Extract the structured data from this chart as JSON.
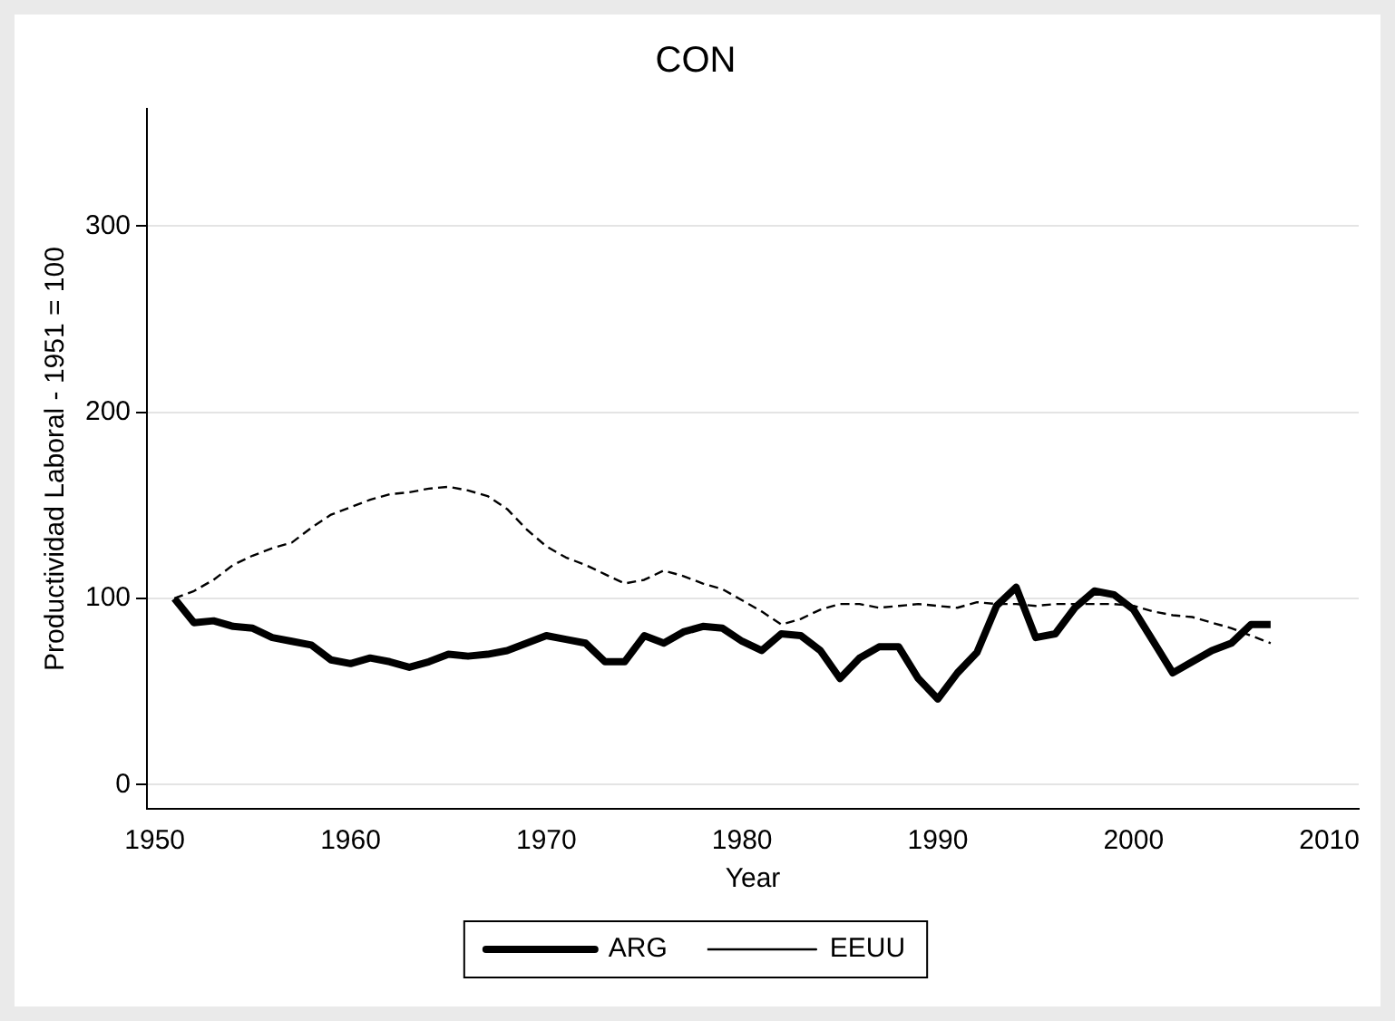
{
  "chart_data": {
    "type": "line",
    "title": "CON",
    "xlabel": "Year",
    "ylabel": "Productividad Laboral - 1951 = 100",
    "x": [
      1951,
      1952,
      1953,
      1954,
      1955,
      1956,
      1957,
      1958,
      1959,
      1960,
      1961,
      1962,
      1963,
      1964,
      1965,
      1966,
      1967,
      1968,
      1969,
      1970,
      1971,
      1972,
      1973,
      1974,
      1975,
      1976,
      1977,
      1978,
      1979,
      1980,
      1981,
      1982,
      1983,
      1984,
      1985,
      1986,
      1987,
      1988,
      1989,
      1990,
      1991,
      1992,
      1993,
      1994,
      1995,
      1996,
      1997,
      1998,
      1999,
      2000,
      2001,
      2002,
      2003,
      2004,
      2005,
      2006,
      2007
    ],
    "series": [
      {
        "name": "ARG",
        "color": "#000000",
        "line_style": "solid",
        "values": [
          100,
          87,
          88,
          85,
          84,
          79,
          77,
          75,
          67,
          65,
          68,
          66,
          63,
          66,
          70,
          69,
          70,
          72,
          76,
          80,
          78,
          76,
          66,
          66,
          80,
          76,
          82,
          85,
          84,
          77,
          72,
          81,
          80,
          72,
          57,
          68,
          74,
          74,
          57,
          46,
          60,
          71,
          96,
          106,
          79,
          81,
          95,
          104,
          102,
          94,
          77,
          60,
          66,
          72,
          76,
          86,
          86
        ]
      },
      {
        "name": "EEUU",
        "color": "#000000",
        "line_style": "dashed",
        "values": [
          100,
          104,
          110,
          118,
          123,
          127,
          130,
          138,
          145,
          149,
          153,
          156,
          157,
          159,
          160,
          158,
          155,
          148,
          137,
          128,
          122,
          118,
          113,
          108,
          110,
          115,
          112,
          108,
          105,
          99,
          93,
          86,
          89,
          94,
          97,
          97,
          95,
          96,
          97,
          96,
          95,
          98,
          97,
          97,
          96,
          97,
          97,
          97,
          97,
          96,
          93,
          91,
          90,
          87,
          84,
          80,
          76
        ]
      }
    ],
    "xlim": [
      1949.6,
      2011.5
    ],
    "ylim": [
      -13,
      363
    ],
    "xticks": [
      1950,
      1960,
      1970,
      1980,
      1990,
      2000,
      2010
    ],
    "yticks": [
      0,
      100,
      200,
      300
    ],
    "grid": "y",
    "legend": "bottom",
    "marker": "none"
  }
}
